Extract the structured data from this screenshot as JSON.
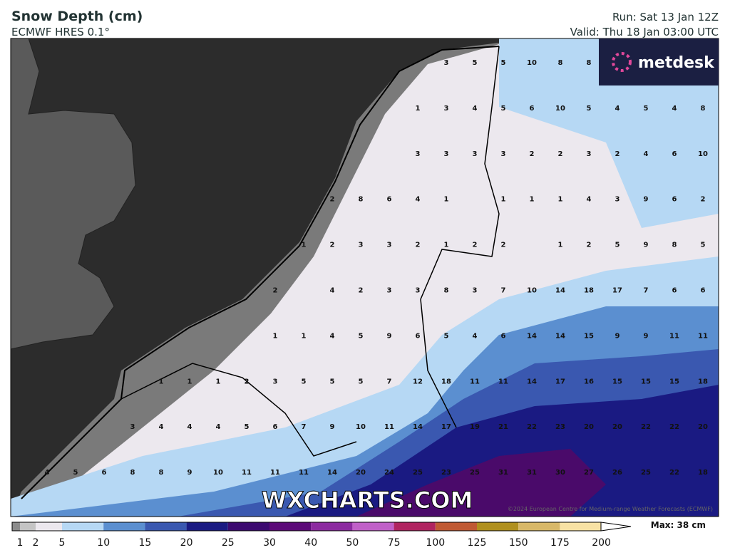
{
  "header": {
    "title": "Snow Depth (cm)",
    "subtitle": "ECMWF HRES 0.1°",
    "run": "Run: Sat 13 Jan 12Z",
    "valid": "Valid: Thu 18 Jan 03:00 UTC"
  },
  "logo": "metdesk",
  "watermark": "WXCHARTS.COM",
  "copyright": "©2024 European Centre for Medium-range Weather Forecasts (ECMWF)",
  "grid_values": [
    [
      null,
      null,
      null,
      null,
      null,
      null,
      null,
      null,
      null,
      null,
      null,
      null,
      null,
      null,
      3,
      5,
      5,
      10,
      8,
      8,
      null,
      null,
      null,
      null
    ],
    [
      null,
      null,
      null,
      null,
      null,
      null,
      null,
      null,
      null,
      null,
      null,
      null,
      null,
      1,
      3,
      4,
      5,
      6,
      10,
      5,
      4,
      5,
      4,
      8
    ],
    [
      null,
      null,
      null,
      null,
      null,
      null,
      null,
      null,
      null,
      null,
      null,
      null,
      null,
      3,
      3,
      3,
      3,
      2,
      2,
      3,
      2,
      4,
      6,
      10
    ],
    [
      null,
      null,
      null,
      null,
      null,
      null,
      null,
      null,
      null,
      null,
      2,
      8,
      6,
      4,
      1,
      null,
      1,
      1,
      1,
      4,
      3,
      9,
      6,
      2
    ],
    [
      null,
      null,
      null,
      null,
      null,
      null,
      null,
      null,
      null,
      1,
      2,
      3,
      3,
      2,
      1,
      2,
      2,
      null,
      1,
      2,
      5,
      9,
      8,
      5
    ],
    [
      null,
      null,
      null,
      null,
      null,
      null,
      null,
      null,
      2,
      null,
      4,
      2,
      3,
      3,
      8,
      3,
      7,
      10,
      14,
      18,
      17,
      7,
      6,
      6
    ],
    [
      null,
      null,
      null,
      null,
      null,
      null,
      null,
      null,
      1,
      1,
      4,
      5,
      9,
      6,
      5,
      4,
      6,
      14,
      14,
      15,
      9,
      9,
      11,
      11
    ],
    [
      null,
      null,
      null,
      null,
      1,
      1,
      1,
      2,
      3,
      5,
      5,
      5,
      7,
      12,
      18,
      11,
      11,
      14,
      17,
      16,
      15,
      15,
      15,
      18
    ],
    [
      null,
      null,
      null,
      3,
      4,
      4,
      4,
      5,
      6,
      7,
      9,
      10,
      11,
      14,
      17,
      19,
      21,
      22,
      23,
      20,
      20,
      22,
      22,
      20
    ],
    [
      4,
      5,
      6,
      8,
      8,
      9,
      10,
      11,
      11,
      11,
      14,
      20,
      24,
      25,
      23,
      25,
      31,
      31,
      30,
      27,
      26,
      25,
      22,
      18
    ]
  ],
  "legend": {
    "labels": [
      1,
      2,
      5,
      10,
      15,
      20,
      25,
      30,
      40,
      50,
      75,
      100,
      125,
      150,
      175,
      200
    ],
    "colors": [
      "#8c8c8c",
      "#c4c4c4",
      "#ece8ee",
      "#b6d8f4",
      "#5b8fd0",
      "#3a58b0",
      "#1a1a82",
      "#3c0a70",
      "#5c0a78",
      "#8c2aa0",
      "#c060c8",
      "#b02460",
      "#c05a34",
      "#b0901e",
      "#d8b868",
      "#f8e2a4"
    ],
    "max": "Max: 38 cm"
  }
}
